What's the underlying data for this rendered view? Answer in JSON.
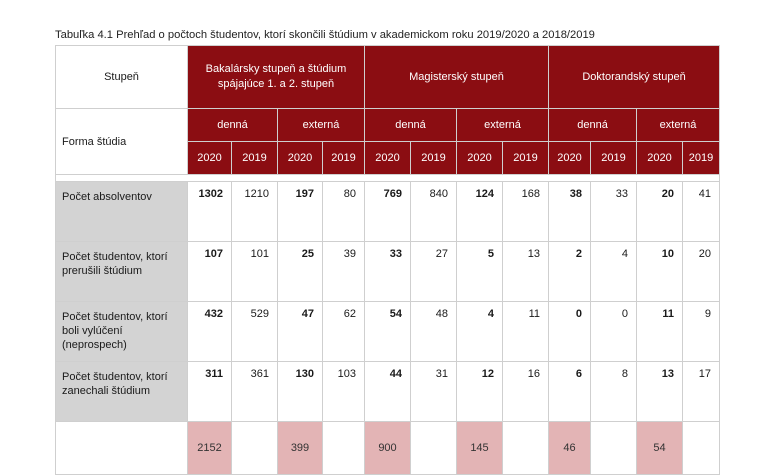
{
  "caption": "Tabuľka 4.1 Prehľad o počtoch študentov, ktorí skončili štúdium v akademickom roku 2019/2020 a 2018/2019",
  "header": {
    "stupen_label": "Stupeň",
    "forma_label": "Forma štúdia",
    "groups": [
      "Bakalársky stupeň a štúdium spájajúce 1. a 2. stupeň",
      "Magisterský stupeň",
      "Doktorandský stupeň"
    ],
    "forms": [
      "denná",
      "externá",
      "denná",
      "externá",
      "denná",
      "externá"
    ],
    "years": [
      "2020",
      "2019",
      "2020",
      "2019",
      "2020",
      "2019",
      "2020",
      "2019",
      "2020",
      "2019",
      "2020",
      "2019"
    ]
  },
  "rows": [
    {
      "label": "Počet absolventov",
      "values": [
        "1302",
        "1210",
        "197",
        "80",
        "769",
        "840",
        "124",
        "168",
        "38",
        "33",
        "20",
        "41"
      ]
    },
    {
      "label": "Počet študentov, ktorí prerušili štúdium",
      "values": [
        "107",
        "101",
        "25",
        "39",
        "33",
        "27",
        "5",
        "13",
        "2",
        "4",
        "10",
        "20"
      ]
    },
    {
      "label": "Počet študentov, ktorí boli vylúčení (neprospech)",
      "values": [
        "432",
        "529",
        "47",
        "62",
        "54",
        "48",
        "4",
        "11",
        "0",
        "0",
        "11",
        "9"
      ]
    },
    {
      "label": "Počet študentov, ktorí zanechali štúdium",
      "values": [
        "311",
        "361",
        "130",
        "103",
        "44",
        "31",
        "12",
        "16",
        "6",
        "8",
        "13",
        "17"
      ]
    }
  ],
  "totals": [
    "2152",
    "399",
    "900",
    "145",
    "46",
    "54"
  ],
  "colors": {
    "header_red": "#8b0d12",
    "label_gray": "#d3d3d3",
    "total_pink": "#e3b4b5"
  }
}
